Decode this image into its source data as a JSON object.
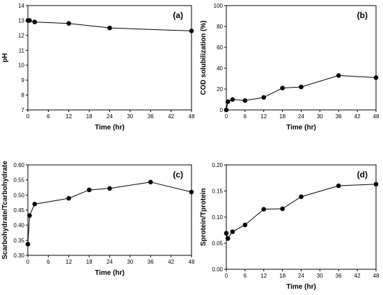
{
  "chart_data": [
    {
      "type": "line",
      "panel_label": "(a)",
      "xlabel": "Time (hr)",
      "ylabel": "pH",
      "xlim": [
        0,
        48
      ],
      "ylim": [
        7,
        14
      ],
      "xticks": [
        0,
        6,
        12,
        18,
        24,
        30,
        36,
        42,
        48
      ],
      "yticks": [
        7,
        8,
        9,
        10,
        11,
        12,
        13,
        14
      ],
      "ytick_decimals": 0,
      "grid": false,
      "series": [
        {
          "x": [
            0,
            0.5,
            2,
            12,
            24,
            48
          ],
          "y": [
            13.0,
            13.0,
            12.9,
            12.8,
            12.5,
            12.3
          ]
        }
      ]
    },
    {
      "type": "line",
      "panel_label": "(b)",
      "xlabel": "Time (hr)",
      "ylabel": "COD solubilization (%)",
      "xlim": [
        0,
        48
      ],
      "ylim": [
        0,
        100
      ],
      "xticks": [
        0,
        6,
        12,
        18,
        24,
        30,
        36,
        42,
        48
      ],
      "yticks": [
        0,
        20,
        40,
        60,
        80,
        100
      ],
      "ytick_decimals": 0,
      "grid": false,
      "series": [
        {
          "x": [
            0,
            0.5,
            2,
            6,
            12,
            18,
            24,
            36,
            48
          ],
          "y": [
            0,
            8,
            10,
            9,
            12,
            21,
            22,
            33,
            31
          ]
        }
      ]
    },
    {
      "type": "line",
      "panel_label": "(c)",
      "xlabel": "Time (hr)",
      "ylabel": "Scarbohydrate/Tcarbohydrate",
      "xlim": [
        0,
        48
      ],
      "ylim": [
        0.3,
        0.6
      ],
      "xticks": [
        0,
        6,
        12,
        18,
        24,
        30,
        36,
        42,
        48
      ],
      "yticks": [
        0.3,
        0.35,
        0.4,
        0.45,
        0.5,
        0.55,
        0.6
      ],
      "ytick_decimals": 2,
      "grid": false,
      "series": [
        {
          "x": [
            0,
            0.5,
            2,
            12,
            18,
            24,
            36,
            48
          ],
          "y": [
            0.337,
            0.432,
            0.47,
            0.489,
            0.517,
            0.522,
            0.543,
            0.51
          ]
        }
      ]
    },
    {
      "type": "line",
      "panel_label": "(d)",
      "xlabel": "Time (hr)",
      "ylabel": "Sprotein/Tprotein",
      "xlim": [
        0,
        48
      ],
      "ylim": [
        0,
        0.2
      ],
      "xticks": [
        0,
        6,
        12,
        18,
        24,
        30,
        36,
        42,
        48
      ],
      "yticks": [
        0,
        0.05,
        0.1,
        0.15,
        0.2
      ],
      "ytick_decimals": 2,
      "grid": false,
      "series": [
        {
          "x": [
            0,
            0.5,
            2,
            6,
            12,
            18,
            24,
            36,
            48
          ],
          "y": [
            0.069,
            0.059,
            0.072,
            0.085,
            0.115,
            0.116,
            0.139,
            0.16,
            0.163
          ]
        }
      ]
    }
  ]
}
